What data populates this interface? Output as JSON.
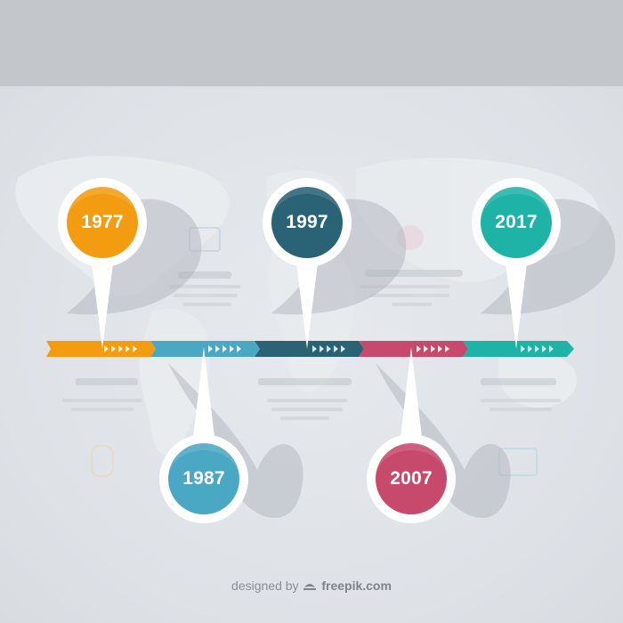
{
  "milestones": [
    {
      "year": "1977",
      "color": "#f39c12",
      "position": "above"
    },
    {
      "year": "1987",
      "color": "#4aa8c4",
      "position": "below"
    },
    {
      "year": "1997",
      "color": "#2a6276",
      "position": "above"
    },
    {
      "year": "2007",
      "color": "#c74a6c",
      "position": "below"
    },
    {
      "year": "2017",
      "color": "#1fb3a8",
      "position": "above"
    }
  ],
  "footer": {
    "credit_prefix": "designed by",
    "credit_brand": "freepik.com"
  }
}
